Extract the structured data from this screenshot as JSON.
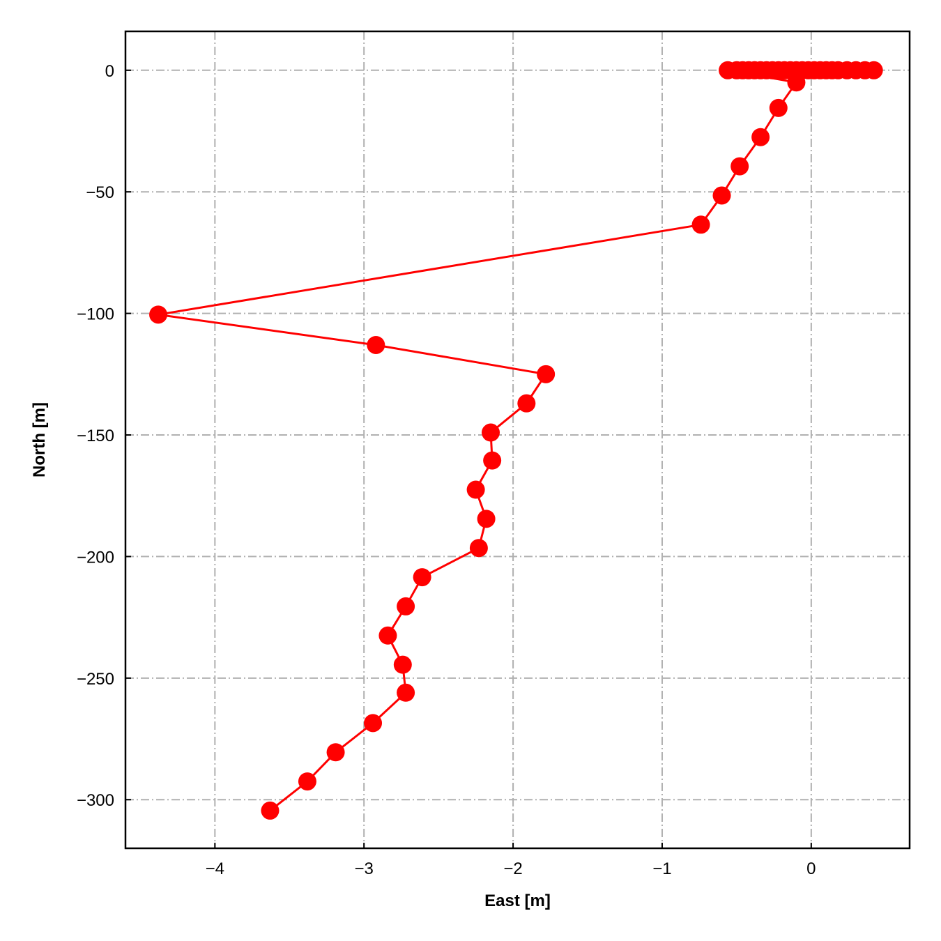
{
  "chart_data": {
    "type": "line",
    "title": "",
    "xlabel": "East [m]",
    "ylabel": "North [m]",
    "xlim": [
      -4.6,
      0.66
    ],
    "ylim": [
      -320,
      16
    ],
    "xticks": [
      -4,
      -3,
      -2,
      -1,
      0
    ],
    "yticks": [
      0,
      -50,
      -100,
      -150,
      -200,
      -250,
      -300
    ],
    "xtick_labels": [
      "−4",
      "−3",
      "−2",
      "−1",
      "0"
    ],
    "ytick_labels": [
      "0",
      "−50",
      "−100",
      "−150",
      "−200",
      "−250",
      "−300"
    ],
    "grid": true,
    "grid_style": "dash-dot",
    "legend": "none",
    "colors": {
      "series": "#ff0000",
      "grid": "#b0b0b0",
      "axes": "#000000"
    },
    "series": [
      {
        "marker": "circle",
        "x": [
          0.42,
          0.36,
          0.3,
          0.24,
          0.18,
          0.14,
          0.1,
          0.06,
          0.02,
          -0.02,
          -0.06,
          -0.1,
          -0.14,
          -0.18,
          -0.22,
          -0.26,
          -0.3,
          -0.34,
          -0.38,
          -0.42,
          -0.46,
          -0.5,
          -0.56,
          -0.1,
          -0.22,
          -0.34,
          -0.48,
          -0.6,
          -0.74,
          -4.38,
          -2.92,
          -1.78,
          -1.91,
          -2.15,
          -2.14,
          -2.25,
          -2.18,
          -2.23,
          -2.61,
          -2.72,
          -2.84,
          -2.74,
          -2.72,
          -2.94,
          -3.19,
          -3.38,
          -3.63
        ],
        "y": [
          0,
          0,
          0,
          0,
          0,
          0,
          0,
          0,
          0,
          0,
          0,
          0,
          0,
          0,
          0,
          0,
          0,
          0,
          0,
          0,
          0,
          0,
          0,
          -5,
          -15.5,
          -27.5,
          -39.5,
          -51.5,
          -63.5,
          -100.5,
          -113,
          -125,
          -137,
          -149,
          -160.5,
          -172.5,
          -184.5,
          -196.5,
          -208.5,
          -220.5,
          -232.5,
          -244.5,
          -256,
          -268.5,
          -280.5,
          -292.5,
          -304.5
        ]
      }
    ]
  }
}
